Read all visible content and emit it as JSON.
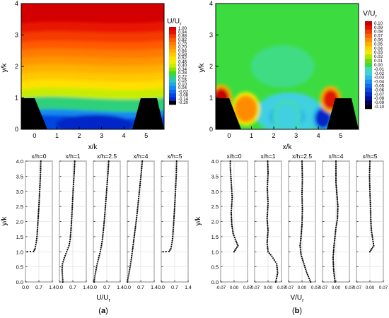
{
  "panels": {
    "a": {
      "label": "(a)",
      "contour": {
        "xlabel": "x/k",
        "ylabel": "y/k",
        "xticks": [
          "0",
          "1",
          "2",
          "3",
          "4",
          "5"
        ],
        "yticks": [
          "0",
          "1",
          "2",
          "3",
          "4"
        ],
        "colorbar": {
          "title_main": "U/U",
          "title_sub": "r",
          "levels": [
            "1.00",
            "0.94",
            "0.88",
            "0.82",
            "0.76",
            "0.70",
            "0.64",
            "0.58",
            "0.52",
            "0.46",
            "0.40",
            "0.34",
            "0.28",
            "0.22",
            "0.16",
            "0.10",
            "0.04",
            "-0.02",
            "-0.08",
            "-0.14",
            "-0.20"
          ],
          "colors": [
            "#d40000",
            "#e81200",
            "#f53a00",
            "#ff5a00",
            "#ff7a00",
            "#ff9400",
            "#ffb000",
            "#ffc800",
            "#ffe000",
            "#f2ee00",
            "#c8ec00",
            "#8ee400",
            "#3cdc20",
            "#2ed07a",
            "#2ec4b6",
            "#22a8e0",
            "#1688f0",
            "#0c66f0",
            "#0646e0",
            "#0628c8",
            "#000000"
          ]
        },
        "x_range": [
          -0.6,
          5.8
        ],
        "y_range": [
          0,
          4
        ]
      },
      "profiles": {
        "titles": [
          "x/h=0",
          "x/h=1",
          "x/h=2.5",
          "x/h=4",
          "x/h=5"
        ],
        "xticks": [
          "0.0",
          "0.7",
          "1.4"
        ],
        "xlabel_main": "U/U",
        "xlabel_sub": "r",
        "ylabel": "y/k",
        "yticks": [
          "0.0",
          "0.5",
          "1.0",
          "1.5",
          "2.0",
          "2.5",
          "3.0",
          "3.5",
          "4.0"
        ]
      }
    },
    "b": {
      "label": "(b)",
      "contour": {
        "xlabel": "x/k",
        "ylabel": "y/k",
        "xticks": [
          "0",
          "1",
          "2",
          "3",
          "4",
          "5"
        ],
        "yticks": [
          "0",
          "1",
          "2",
          "3",
          "4"
        ],
        "colorbar": {
          "title_main": "V/U",
          "title_sub": "r",
          "levels": [
            "0.10",
            "0.09",
            "0.08",
            "0.07",
            "0.06",
            "0.05",
            "0.04",
            "0.03",
            "0.02",
            "0.01",
            "0.00",
            "-0.01",
            "-0.02",
            "-0.03",
            "-0.04",
            "-0.05",
            "-0.06",
            "-0.07",
            "-0.08",
            "-0.09",
            "-0.10"
          ],
          "colors": [
            "#c80000",
            "#e01400",
            "#f03c00",
            "#ff6400",
            "#ff8c00",
            "#ffb000",
            "#ffd200",
            "#f0ec00",
            "#b4e600",
            "#70dc10",
            "#3cdc40",
            "#40dcb0",
            "#40d0e0",
            "#30b4f0",
            "#2090f0",
            "#106cf0",
            "#0a48e0",
            "#0628c8",
            "#0010a0",
            "#000060",
            "#000000"
          ]
        },
        "x_range": [
          -0.6,
          5.8
        ],
        "y_range": [
          0,
          4
        ]
      },
      "profiles": {
        "titles": [
          "x/h=0",
          "x/h=1",
          "x/h=2.5",
          "x/h=4",
          "x/h=5"
        ],
        "xticks": [
          "-0.07",
          "0.00",
          "0.07"
        ],
        "xlabel_main": "V/U",
        "xlabel_sub": "r",
        "ylabel": "y/k",
        "yticks": [
          "0.0",
          "0.5",
          "1.0",
          "1.5",
          "2.0",
          "2.5",
          "3.0",
          "3.5",
          "4.0"
        ]
      }
    }
  },
  "chart_data": [
    {
      "type": "heatmap",
      "panel": "a (top)",
      "quantity": "U/Ur",
      "x_range": [
        -0.6,
        5.8
      ],
      "y_range": [
        0,
        4
      ],
      "xlabel": "x/k",
      "ylabel": "y/k",
      "colorbar_range": [
        -0.2,
        1.0
      ],
      "bands_y_at_center": [
        {
          "y": 3.9,
          "value": 1.0
        },
        {
          "y": 3.5,
          "value": 0.94
        },
        {
          "y": 3.1,
          "value": 0.88
        },
        {
          "y": 2.8,
          "value": 0.82
        },
        {
          "y": 2.5,
          "value": 0.76
        },
        {
          "y": 2.25,
          "value": 0.7
        },
        {
          "y": 2.0,
          "value": 0.64
        },
        {
          "y": 1.75,
          "value": 0.58
        },
        {
          "y": 1.5,
          "value": 0.52
        },
        {
          "y": 1.25,
          "value": 0.46
        },
        {
          "y": 1.0,
          "value": 0.34
        },
        {
          "y": 0.7,
          "value": 0.16
        },
        {
          "y": 0.3,
          "value": 0.0
        },
        {
          "y": 0.1,
          "value": -0.14
        }
      ],
      "roughness_elements": [
        {
          "x_from": -0.6,
          "x_to": 0.6,
          "height": 1.0
        },
        {
          "x_from": 4.4,
          "x_to": 5.6,
          "height": 1.0
        }
      ]
    },
    {
      "type": "heatmap",
      "panel": "b (top)",
      "quantity": "V/Ur",
      "x_range": [
        -0.6,
        5.8
      ],
      "y_range": [
        0,
        4
      ],
      "xlabel": "x/k",
      "ylabel": "y/k",
      "colorbar_range": [
        -0.1,
        0.1
      ],
      "background_value": 0.0,
      "features": [
        {
          "x": -0.35,
          "y": 1.0,
          "value": 0.09
        },
        {
          "x": 0.75,
          "y": 0.65,
          "value": 0.05
        },
        {
          "x": 2.6,
          "y": 0.4,
          "value": -0.03
        },
        {
          "x": 4.2,
          "y": 0.35,
          "value": -0.08
        },
        {
          "x": 4.55,
          "y": 0.95,
          "value": 0.08
        }
      ],
      "roughness_elements": [
        {
          "x_from": -0.6,
          "x_to": 0.6,
          "height": 1.0
        },
        {
          "x_from": 4.4,
          "x_to": 5.6,
          "height": 1.0
        }
      ]
    },
    {
      "type": "scatter",
      "panel": "a (bottom)",
      "quantity": "U/Ur profiles",
      "xlabel": "U/Ur",
      "ylabel": "y/k",
      "xlim": [
        0.0,
        1.4
      ],
      "ylim": [
        0.0,
        4.0
      ],
      "series": [
        {
          "name": "x/h=0",
          "points": [
            [
              0.1,
              1.0
            ],
            [
              0.42,
              1.01
            ],
            [
              0.5,
              1.1
            ],
            [
              0.56,
              1.3
            ],
            [
              0.6,
              1.5
            ],
            [
              0.63,
              1.8
            ],
            [
              0.66,
              2.1
            ],
            [
              0.7,
              2.5
            ],
            [
              0.74,
              3.0
            ],
            [
              0.78,
              3.5
            ],
            [
              0.8,
              4.0
            ]
          ]
        },
        {
          "name": "x/h=1",
          "points": [
            [
              0.18,
              0.0
            ],
            [
              0.16,
              0.2
            ],
            [
              0.14,
              0.4
            ],
            [
              0.16,
              0.6
            ],
            [
              0.26,
              0.8
            ],
            [
              0.38,
              1.0
            ],
            [
              0.5,
              1.2
            ],
            [
              0.56,
              1.4
            ],
            [
              0.6,
              1.7
            ],
            [
              0.64,
              2.1
            ],
            [
              0.68,
              2.6
            ],
            [
              0.72,
              3.1
            ],
            [
              0.77,
              3.6
            ],
            [
              0.8,
              4.0
            ]
          ]
        },
        {
          "name": "x/h=2.5",
          "points": [
            [
              0.04,
              0.0
            ],
            [
              0.08,
              0.2
            ],
            [
              0.14,
              0.4
            ],
            [
              0.2,
              0.6
            ],
            [
              0.28,
              0.8
            ],
            [
              0.36,
              1.0
            ],
            [
              0.42,
              1.2
            ],
            [
              0.47,
              1.4
            ],
            [
              0.52,
              1.7
            ],
            [
              0.58,
              2.1
            ],
            [
              0.64,
              2.6
            ],
            [
              0.7,
              3.1
            ],
            [
              0.76,
              3.6
            ],
            [
              0.8,
              4.0
            ]
          ]
        },
        {
          "name": "x/h=4",
          "points": [
            [
              0.0,
              0.0
            ],
            [
              0.06,
              0.2
            ],
            [
              0.12,
              0.4
            ],
            [
              0.17,
              0.6
            ],
            [
              0.22,
              0.8
            ],
            [
              0.26,
              1.0
            ],
            [
              0.32,
              1.3
            ],
            [
              0.4,
              1.7
            ],
            [
              0.5,
              2.2
            ],
            [
              0.58,
              2.7
            ],
            [
              0.66,
              3.2
            ],
            [
              0.74,
              3.7
            ],
            [
              0.78,
              4.0
            ]
          ]
        },
        {
          "name": "x/h=5",
          "points": [
            [
              0.1,
              1.0
            ],
            [
              0.4,
              1.01
            ],
            [
              0.5,
              1.1
            ],
            [
              0.56,
              1.3
            ],
            [
              0.6,
              1.5
            ],
            [
              0.63,
              1.8
            ],
            [
              0.66,
              2.1
            ],
            [
              0.7,
              2.5
            ],
            [
              0.74,
              3.0
            ],
            [
              0.78,
              3.5
            ],
            [
              0.8,
              4.0
            ]
          ]
        }
      ]
    },
    {
      "type": "scatter",
      "panel": "b (bottom)",
      "quantity": "V/Ur profiles",
      "xlabel": "V/Ur",
      "ylabel": "y/k",
      "xlim": [
        -0.07,
        0.07
      ],
      "ylim": [
        0.0,
        4.0
      ],
      "series": [
        {
          "name": "x/h=0",
          "points": [
            [
              0.0,
              1.0
            ],
            [
              0.01,
              1.1
            ],
            [
              0.02,
              1.2
            ],
            [
              0.01,
              1.35
            ],
            [
              -0.005,
              1.6
            ],
            [
              -0.012,
              1.9
            ],
            [
              -0.015,
              2.3
            ],
            [
              -0.01,
              2.8
            ],
            [
              -0.015,
              3.3
            ],
            [
              -0.02,
              3.8
            ],
            [
              -0.02,
              4.0
            ]
          ]
        },
        {
          "name": "x/h=1",
          "points": [
            [
              0.04,
              0.0
            ],
            [
              0.05,
              0.3
            ],
            [
              0.045,
              0.6
            ],
            [
              0.02,
              0.85
            ],
            [
              0.0,
              1.0
            ],
            [
              -0.005,
              1.3
            ],
            [
              0.0,
              1.7
            ],
            [
              -0.005,
              2.1
            ],
            [
              0.0,
              2.6
            ],
            [
              -0.004,
              3.1
            ],
            [
              0.0,
              3.6
            ],
            [
              -0.002,
              4.0
            ]
          ]
        },
        {
          "name": "x/h=2.5",
          "points": [
            [
              0.045,
              0.0
            ],
            [
              0.025,
              0.3
            ],
            [
              0.01,
              0.6
            ],
            [
              -0.005,
              0.9
            ],
            [
              -0.01,
              1.2
            ],
            [
              -0.005,
              1.5
            ],
            [
              0.0,
              1.9
            ],
            [
              0.002,
              2.4
            ],
            [
              0.0,
              2.9
            ],
            [
              0.002,
              3.4
            ],
            [
              0.0,
              4.0
            ]
          ]
        },
        {
          "name": "x/h=4",
          "points": [
            [
              -0.005,
              0.0
            ],
            [
              -0.012,
              0.4
            ],
            [
              -0.015,
              0.8
            ],
            [
              -0.01,
              1.2
            ],
            [
              -0.005,
              1.5
            ],
            [
              0.0,
              1.8
            ],
            [
              0.008,
              2.1
            ],
            [
              0.01,
              2.5
            ],
            [
              0.005,
              2.9
            ],
            [
              0.0,
              3.3
            ],
            [
              0.0,
              3.7
            ],
            [
              0.0,
              4.0
            ]
          ]
        },
        {
          "name": "x/h=5",
          "points": [
            [
              0.0,
              1.0
            ],
            [
              0.01,
              1.1
            ],
            [
              0.02,
              1.2
            ],
            [
              0.015,
              1.4
            ],
            [
              0.008,
              1.7
            ],
            [
              0.005,
              2.0
            ],
            [
              0.003,
              2.5
            ],
            [
              0.0,
              3.0
            ],
            [
              -0.002,
              3.5
            ],
            [
              0.0,
              4.0
            ]
          ]
        }
      ]
    }
  ]
}
